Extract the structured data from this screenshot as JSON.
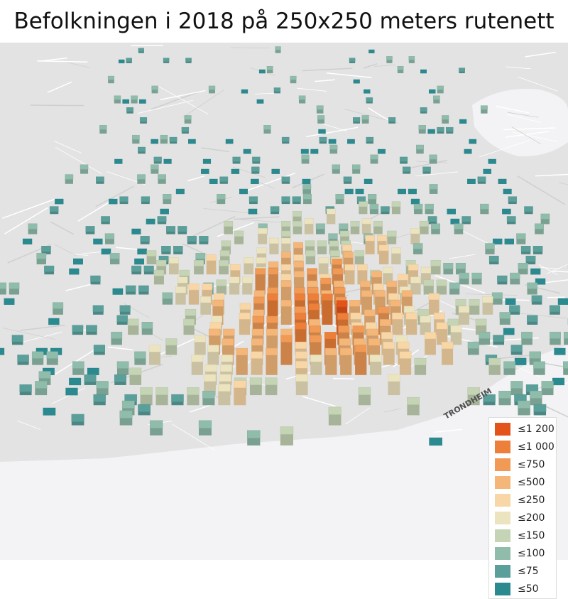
{
  "title": "Befolkningen i 2018 på 250x250 meters rutenett",
  "legend": [
    {
      "label": "≤1 200",
      "value": 1200,
      "color": "#e3541b"
    },
    {
      "label": "≤1 000",
      "value": 1000,
      "color": "#ec7f39"
    },
    {
      "label": "≤750",
      "value": 750,
      "color": "#f09a56"
    },
    {
      "label": "≤500",
      "value": 500,
      "color": "#f5b779"
    },
    {
      "label": "≤250",
      "value": 250,
      "color": "#f9d6a5"
    },
    {
      "label": "≤200",
      "value": 200,
      "color": "#ece3bf"
    },
    {
      "label": "≤150",
      "value": 150,
      "color": "#c4d4b4"
    },
    {
      "label": "≤100",
      "value": 100,
      "color": "#8fbcab"
    },
    {
      "label": "≤75",
      "value": 75,
      "color": "#5a9f9a"
    },
    {
      "label": "≤50",
      "value": 50,
      "color": "#2a8a8f"
    }
  ],
  "map_labels": {
    "city": "TRONDHEIM"
  },
  "colors": {
    "basemap": "#e5e5e5",
    "water": "#f2f2f4",
    "roads": "#ffffff"
  }
}
